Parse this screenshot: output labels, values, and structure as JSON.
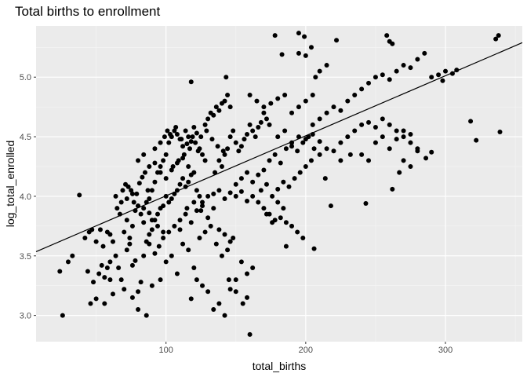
{
  "chart_data": {
    "type": "scatter",
    "title": "Total births to enrollment",
    "xlabel": "total_births",
    "ylabel": "log_total_enrolled",
    "xlim": [
      7,
      355
    ],
    "ylim": [
      2.78,
      5.43
    ],
    "x_ticks": [
      100,
      200,
      300
    ],
    "x_minor_ticks": [
      50,
      150,
      250,
      350
    ],
    "y_ticks": [
      3.0,
      3.5,
      4.0,
      4.5,
      5.0
    ],
    "y_tick_labels": [
      "3.0",
      "3.5",
      "4.0",
      "4.5",
      "5.0"
    ],
    "y_minor_ticks": [
      3.25,
      3.75,
      4.25,
      4.75,
      5.25
    ],
    "grid": true,
    "regression_line": {
      "intercept": 3.5,
      "slope": 0.00504
    },
    "points": [
      [
        24,
        3.37
      ],
      [
        26,
        3.0
      ],
      [
        30,
        3.45
      ],
      [
        33,
        3.5
      ],
      [
        38,
        4.01
      ],
      [
        42,
        3.65
      ],
      [
        45,
        3.7
      ],
      [
        47,
        3.72
      ],
      [
        50,
        3.62
      ],
      [
        53,
        3.72
      ],
      [
        55,
        3.58
      ],
      [
        58,
        3.7
      ],
      [
        60,
        3.68
      ],
      [
        44,
        3.37
      ],
      [
        46,
        3.1
      ],
      [
        48,
        3.28
      ],
      [
        50,
        3.14
      ],
      [
        52,
        3.35
      ],
      [
        54,
        3.42
      ],
      [
        56,
        3.32
      ],
      [
        58,
        3.4
      ],
      [
        60,
        3.45
      ],
      [
        62,
        3.62
      ],
      [
        65,
        3.9
      ],
      [
        67,
        3.85
      ],
      [
        69,
        4.05
      ],
      [
        71,
        4.1
      ],
      [
        73,
        4.08
      ],
      [
        75,
        4.05
      ],
      [
        77,
        3.95
      ],
      [
        79,
        4.02
      ],
      [
        81,
        4.11
      ],
      [
        83,
        4.16
      ],
      [
        85,
        4.2
      ],
      [
        87,
        4.05
      ],
      [
        56,
        3.1
      ],
      [
        60,
        3.3
      ],
      [
        62,
        3.18
      ],
      [
        64,
        3.5
      ],
      [
        66,
        3.4
      ],
      [
        68,
        3.3
      ],
      [
        70,
        3.22
      ],
      [
        72,
        3.55
      ],
      [
        74,
        3.6
      ],
      [
        76,
        3.42
      ],
      [
        78,
        3.46
      ],
      [
        80,
        3.2
      ],
      [
        82,
        3.28
      ],
      [
        84,
        3.5
      ],
      [
        86,
        3.62
      ],
      [
        88,
        3.68
      ],
      [
        90,
        3.72
      ],
      [
        92,
        3.8
      ],
      [
        94,
        3.85
      ],
      [
        96,
        3.9
      ],
      [
        98,
        3.92
      ],
      [
        100,
        4.0
      ],
      [
        102,
        3.95
      ],
      [
        104,
        3.98
      ],
      [
        106,
        4.02
      ],
      [
        108,
        4.05
      ],
      [
        110,
        4.1
      ],
      [
        112,
        4.15
      ],
      [
        114,
        4.08
      ],
      [
        116,
        4.12
      ],
      [
        118,
        4.18
      ],
      [
        120,
        4.2
      ],
      [
        122,
        4.05
      ],
      [
        124,
        4.0
      ],
      [
        126,
        3.95
      ],
      [
        70,
        3.7
      ],
      [
        72,
        3.8
      ],
      [
        74,
        3.65
      ],
      [
        76,
        3.75
      ],
      [
        78,
        3.88
      ],
      [
        80,
        3.92
      ],
      [
        82,
        3.85
      ],
      [
        84,
        3.78
      ],
      [
        86,
        3.95
      ],
      [
        88,
        3.98
      ],
      [
        90,
        4.05
      ],
      [
        92,
        4.12
      ],
      [
        94,
        4.2
      ],
      [
        96,
        4.25
      ],
      [
        98,
        4.3
      ],
      [
        100,
        4.35
      ],
      [
        102,
        4.45
      ],
      [
        104,
        4.5
      ],
      [
        106,
        4.55
      ],
      [
        108,
        4.52
      ],
      [
        110,
        4.48
      ],
      [
        112,
        4.42
      ],
      [
        114,
        4.55
      ],
      [
        116,
        4.5
      ],
      [
        118,
        4.46
      ],
      [
        120,
        4.58
      ],
      [
        122,
        4.53
      ],
      [
        124,
        4.4
      ],
      [
        126,
        4.35
      ],
      [
        128,
        4.3
      ],
      [
        76,
        3.15
      ],
      [
        80,
        3.05
      ],
      [
        86,
        3.0
      ],
      [
        90,
        3.25
      ],
      [
        96,
        3.3
      ],
      [
        100,
        3.45
      ],
      [
        104,
        3.5
      ],
      [
        108,
        3.35
      ],
      [
        112,
        3.6
      ],
      [
        116,
        3.55
      ],
      [
        120,
        3.4
      ],
      [
        124,
        3.65
      ],
      [
        128,
        3.7
      ],
      [
        132,
        3.75
      ],
      [
        136,
        3.6
      ],
      [
        140,
        3.5
      ],
      [
        144,
        3.55
      ],
      [
        148,
        3.65
      ],
      [
        118,
        3.14
      ],
      [
        122,
        3.3
      ],
      [
        126,
        3.25
      ],
      [
        130,
        3.2
      ],
      [
        134,
        3.05
      ],
      [
        138,
        3.1
      ],
      [
        142,
        3.0
      ],
      [
        146,
        3.22
      ],
      [
        150,
        3.3
      ],
      [
        154,
        3.45
      ],
      [
        158,
        3.35
      ],
      [
        162,
        3.4
      ],
      [
        135,
        4.2
      ],
      [
        138,
        4.3
      ],
      [
        140,
        4.25
      ],
      [
        142,
        4.35
      ],
      [
        144,
        4.4
      ],
      [
        146,
        4.5
      ],
      [
        148,
        4.55
      ],
      [
        150,
        4.45
      ],
      [
        152,
        4.38
      ],
      [
        154,
        4.42
      ],
      [
        156,
        4.48
      ],
      [
        158,
        4.52
      ],
      [
        160,
        4.6
      ],
      [
        162,
        4.55
      ],
      [
        164,
        4.5
      ],
      [
        166,
        4.58
      ],
      [
        168,
        4.62
      ],
      [
        170,
        4.7
      ],
      [
        172,
        4.65
      ],
      [
        174,
        4.6
      ],
      [
        128,
        4.6
      ],
      [
        130,
        4.65
      ],
      [
        132,
        4.7
      ],
      [
        134,
        4.68
      ],
      [
        136,
        4.75
      ],
      [
        138,
        4.72
      ],
      [
        140,
        4.78
      ],
      [
        142,
        4.8
      ],
      [
        144,
        4.85
      ],
      [
        146,
        4.75
      ],
      [
        160,
        4.85
      ],
      [
        165,
        4.8
      ],
      [
        170,
        4.75
      ],
      [
        175,
        4.78
      ],
      [
        180,
        4.82
      ],
      [
        185,
        4.85
      ],
      [
        190,
        4.7
      ],
      [
        195,
        4.75
      ],
      [
        200,
        4.8
      ],
      [
        205,
        4.85
      ],
      [
        130,
        4.0
      ],
      [
        134,
        4.02
      ],
      [
        138,
        4.05
      ],
      [
        142,
        3.98
      ],
      [
        146,
        4.03
      ],
      [
        150,
        4.0
      ],
      [
        154,
        4.04
      ],
      [
        158,
        3.96
      ],
      [
        162,
        4.0
      ],
      [
        166,
        3.95
      ],
      [
        170,
        3.9
      ],
      [
        174,
        3.85
      ],
      [
        178,
        3.8
      ],
      [
        182,
        3.82
      ],
      [
        186,
        3.78
      ],
      [
        190,
        3.75
      ],
      [
        194,
        3.7
      ],
      [
        198,
        3.65
      ],
      [
        160,
        2.84
      ],
      [
        143,
        5.0
      ],
      [
        118,
        4.96
      ],
      [
        178,
        5.35
      ],
      [
        183,
        5.19
      ],
      [
        195,
        5.37
      ],
      [
        199,
        5.34
      ],
      [
        204,
        5.25
      ],
      [
        207,
        5.0
      ],
      [
        210,
        5.05
      ],
      [
        215,
        5.1
      ],
      [
        222,
        5.31
      ],
      [
        180,
        4.5
      ],
      [
        185,
        4.55
      ],
      [
        190,
        4.45
      ],
      [
        195,
        4.5
      ],
      [
        200,
        4.48
      ],
      [
        205,
        4.52
      ],
      [
        210,
        4.46
      ],
      [
        215,
        4.4
      ],
      [
        220,
        4.38
      ],
      [
        225,
        4.45
      ],
      [
        230,
        4.5
      ],
      [
        235,
        4.55
      ],
      [
        240,
        4.6
      ],
      [
        245,
        4.62
      ],
      [
        250,
        4.58
      ],
      [
        255,
        4.65
      ],
      [
        260,
        4.6
      ],
      [
        265,
        4.55
      ],
      [
        270,
        4.5
      ],
      [
        275,
        4.45
      ],
      [
        205,
        4.6
      ],
      [
        210,
        4.65
      ],
      [
        215,
        4.7
      ],
      [
        220,
        4.75
      ],
      [
        225,
        4.72
      ],
      [
        230,
        4.8
      ],
      [
        235,
        4.85
      ],
      [
        240,
        4.9
      ],
      [
        245,
        4.95
      ],
      [
        250,
        5.0
      ],
      [
        255,
        5.02
      ],
      [
        260,
        4.98
      ],
      [
        265,
        5.05
      ],
      [
        270,
        5.1
      ],
      [
        275,
        5.08
      ],
      [
        280,
        5.15
      ],
      [
        285,
        5.2
      ],
      [
        290,
        5.0
      ],
      [
        295,
        5.02
      ],
      [
        300,
        5.05
      ],
      [
        305,
        5.03
      ],
      [
        308,
        5.06
      ],
      [
        298,
        4.97
      ],
      [
        195,
        5.2
      ],
      [
        200,
        5.18
      ],
      [
        258,
        5.35
      ],
      [
        260,
        5.3
      ],
      [
        262,
        5.28
      ],
      [
        336,
        5.32
      ],
      [
        338,
        5.35
      ],
      [
        214,
        4.15
      ],
      [
        218,
        3.92
      ],
      [
        206,
        3.56
      ],
      [
        186,
        3.58
      ],
      [
        176,
        3.78
      ],
      [
        172,
        3.85
      ],
      [
        180,
        3.95
      ],
      [
        184,
        3.9
      ],
      [
        225,
        4.3
      ],
      [
        232,
        4.35
      ],
      [
        243,
        3.94
      ],
      [
        262,
        4.06
      ],
      [
        267,
        4.2
      ],
      [
        270,
        4.3
      ],
      [
        275,
        4.25
      ],
      [
        280,
        4.4
      ],
      [
        286,
        4.32
      ],
      [
        290,
        4.37
      ],
      [
        318,
        4.63
      ],
      [
        322,
        4.47
      ],
      [
        339,
        4.54
      ],
      [
        250,
        4.45
      ],
      [
        255,
        4.5
      ],
      [
        260,
        4.4
      ],
      [
        265,
        4.48
      ],
      [
        270,
        4.55
      ],
      [
        275,
        4.52
      ],
      [
        280,
        4.38
      ],
      [
        245,
        4.3
      ],
      [
        240,
        4.35
      ],
      [
        110,
        3.72
      ],
      [
        114,
        3.85
      ],
      [
        118,
        3.78
      ],
      [
        122,
        3.88
      ],
      [
        126,
        3.92
      ],
      [
        130,
        3.82
      ],
      [
        134,
        3.9
      ],
      [
        138,
        3.72
      ],
      [
        142,
        3.68
      ],
      [
        146,
        3.62
      ],
      [
        92,
        4.4
      ],
      [
        96,
        4.45
      ],
      [
        99,
        4.5
      ],
      [
        101,
        4.55
      ],
      [
        103,
        4.52
      ],
      [
        107,
        4.58
      ],
      [
        111,
        4.48
      ],
      [
        115,
        4.44
      ],
      [
        119,
        4.5
      ],
      [
        123,
        4.38
      ],
      [
        80,
        4.3
      ],
      [
        84,
        4.35
      ],
      [
        88,
        4.25
      ],
      [
        92,
        4.28
      ],
      [
        96,
        4.2
      ],
      [
        100,
        4.15
      ],
      [
        104,
        4.22
      ],
      [
        108,
        4.28
      ],
      [
        112,
        4.32
      ],
      [
        116,
        4.25
      ],
      [
        150,
        4.1
      ],
      [
        154,
        4.15
      ],
      [
        158,
        4.2
      ],
      [
        162,
        4.12
      ],
      [
        166,
        4.18
      ],
      [
        170,
        4.22
      ],
      [
        174,
        4.3
      ],
      [
        178,
        4.35
      ],
      [
        182,
        4.28
      ],
      [
        186,
        4.4
      ],
      [
        190,
        4.42
      ],
      [
        194,
        4.38
      ],
      [
        198,
        4.45
      ],
      [
        202,
        4.5
      ],
      [
        206,
        4.4
      ],
      [
        210,
        4.35
      ],
      [
        150,
        3.2
      ],
      [
        155,
        3.1
      ],
      [
        158,
        3.15
      ],
      [
        145,
        3.3
      ],
      [
        88,
        3.6
      ],
      [
        92,
        3.52
      ],
      [
        95,
        3.58
      ],
      [
        98,
        3.65
      ],
      [
        102,
        3.7
      ],
      [
        106,
        3.75
      ],
      [
        110,
        3.8
      ],
      [
        115,
        3.9
      ],
      [
        120,
        3.95
      ],
      [
        125,
        3.88
      ],
      [
        64,
        4.0
      ],
      [
        68,
        3.95
      ],
      [
        72,
        3.98
      ],
      [
        76,
        4.02
      ],
      [
        80,
        3.92
      ],
      [
        84,
        3.9
      ],
      [
        88,
        3.86
      ],
      [
        90,
        3.8
      ],
      [
        94,
        3.75
      ],
      [
        98,
        3.7
      ],
      [
        105,
        4.25
      ],
      [
        109,
        4.3
      ],
      [
        113,
        4.35
      ],
      [
        117,
        4.4
      ],
      [
        121,
        4.45
      ],
      [
        125,
        4.5
      ],
      [
        129,
        4.55
      ],
      [
        133,
        4.48
      ],
      [
        137,
        4.42
      ],
      [
        141,
        4.38
      ],
      [
        168,
        4.05
      ],
      [
        172,
        4.1
      ],
      [
        176,
        4.0
      ],
      [
        180,
        4.06
      ],
      [
        184,
        4.12
      ],
      [
        188,
        4.08
      ],
      [
        192,
        4.15
      ],
      [
        196,
        4.2
      ],
      [
        200,
        4.25
      ],
      [
        204,
        4.3
      ]
    ]
  }
}
